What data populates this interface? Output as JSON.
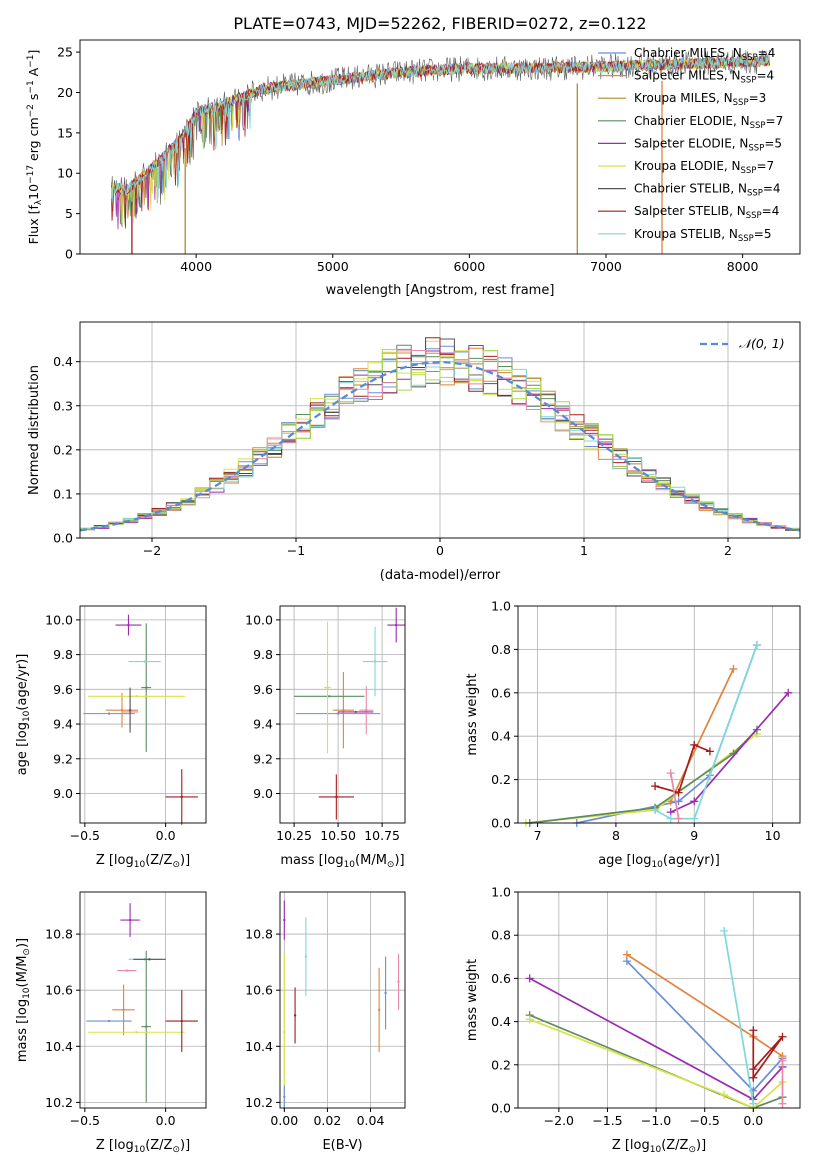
{
  "figure_title": "PLATE=0743, MJD=52262, FIBERID=0272, z=0.122",
  "colors": {
    "Chabrier MILES": "#6a8fd8",
    "Salpeter MILES": "#e0843e",
    "Kroupa MILES": "#b38a2a",
    "Chabrier ELODIE": "#5e8c5e",
    "Salpeter ELODIE": "#9b2cb0",
    "Kroupa ELODIE": "#d7e24a",
    "Chabrier STELIB": "#555555",
    "Salpeter STELIB": "#a51c1c",
    "Kroupa STELIB": "#7fd8dc",
    "pink": "#e889aa",
    "green": "#a9d84f",
    "normal": "#5a8ad6"
  },
  "chart_data": [
    {
      "id": "spectrum",
      "type": "line",
      "title": "PLATE=0743, MJD=52262, FIBERID=0272, z=0.122",
      "xlabel": "wavelength [Angstrom, rest frame]",
      "ylabel": "Flux [f_λ 10^-17 erg cm^-2 s^-1 A^-1]",
      "xlim": [
        3150,
        8420
      ],
      "ylim": [
        0,
        26.5
      ],
      "xticks": [
        "4000",
        "5000",
        "6000",
        "7000",
        "8000"
      ],
      "yticks": [
        "0",
        "5",
        "10",
        "15",
        "20",
        "25"
      ],
      "legend": [
        {
          "base": "Chabrier MILES, N",
          "sub": "SSP",
          "tail": "=4"
        },
        {
          "base": "Salpeter MILES, N",
          "sub": "SSP",
          "tail": "=4"
        },
        {
          "base": "Kroupa MILES, N",
          "sub": "SSP",
          "tail": "=3"
        },
        {
          "base": "Chabrier ELODIE, N",
          "sub": "SSP",
          "tail": "=7"
        },
        {
          "base": "Salpeter ELODIE, N",
          "sub": "SSP",
          "tail": "=5"
        },
        {
          "base": "Kroupa ELODIE, N",
          "sub": "SSP",
          "tail": "=7"
        },
        {
          "base": "Chabrier STELIB, N",
          "sub": "SSP",
          "tail": "=4"
        },
        {
          "base": "Salpeter STELIB, N",
          "sub": "SSP",
          "tail": "=4"
        },
        {
          "base": "Kroupa STELIB, N",
          "sub": "SSP",
          "tail": "=5"
        }
      ],
      "continuum_anchors": [
        [
          3380,
          8.3
        ],
        [
          3500,
          8.0
        ],
        [
          3700,
          11.0
        ],
        [
          3900,
          14.5
        ],
        [
          4000,
          17.5
        ],
        [
          4200,
          18.5
        ],
        [
          4500,
          20.5
        ],
        [
          5000,
          21.5
        ],
        [
          5500,
          22.5
        ],
        [
          6000,
          23.0
        ],
        [
          6500,
          23.0
        ],
        [
          7000,
          23.2
        ],
        [
          7500,
          23.5
        ],
        [
          8000,
          23.8
        ],
        [
          8200,
          23.9
        ]
      ],
      "spikes_down": [
        [
          3530,
          0
        ],
        [
          3920,
          0
        ],
        [
          6790,
          0
        ],
        [
          7410,
          0
        ]
      ]
    },
    {
      "id": "residuals",
      "type": "histogram",
      "xlabel": "(data-model)/error",
      "ylabel": "Normed distribution",
      "xlim": [
        -2.5,
        2.5
      ],
      "ylim": [
        0,
        0.49
      ],
      "xticks": [
        "−2",
        "−1",
        "0",
        "1",
        "2"
      ],
      "yticks": [
        "0.0",
        "0.1",
        "0.2",
        "0.3",
        "0.4"
      ],
      "legend": "𝒩(0, 1)",
      "bin_width": 0.1
    },
    {
      "id": "Z-age",
      "type": "errorbar",
      "xlabel": "Z [log10(Z/Z⊙)]",
      "ylabel": "age  [log10(age/yr)]",
      "xlim": [
        -0.53,
        0.25
      ],
      "ylim": [
        8.83,
        10.08
      ],
      "xticks": [
        "−0.5",
        "0.0"
      ],
      "yticks": [
        "9.0",
        "9.2",
        "9.4",
        "9.6",
        "9.8",
        "10.0"
      ],
      "points": [
        {
          "c": "Chabrier MILES",
          "x": -0.35,
          "xe": 0.16,
          "y": 9.46,
          "ye": 0.0
        },
        {
          "c": "Salpeter MILES",
          "x": -0.27,
          "xe": 0.1,
          "y": 9.48,
          "ye": 0.1
        },
        {
          "c": "Chabrier ELODIE",
          "x": -0.12,
          "xe": 0.03,
          "y": 9.61,
          "ye": 0.37
        },
        {
          "c": "Salpeter ELODIE",
          "x": -0.23,
          "xe": 0.08,
          "y": 9.97,
          "ye": 0.06
        },
        {
          "c": "Kroupa ELODIE",
          "x": -0.18,
          "xe": 0.3,
          "y": 9.56,
          "ye": 0.0
        },
        {
          "c": "Salpeter STELIB",
          "x": 0.1,
          "xe": 0.1,
          "y": 8.98,
          "ye": 0.16
        },
        {
          "c": "Kroupa STELIB",
          "x": -0.13,
          "xe": 0.1,
          "y": 9.76,
          "ye": 0.0
        },
        {
          "c": "pink",
          "x": -0.22,
          "xe": 0.05,
          "y": 9.47,
          "ye": 0.09
        },
        {
          "c": "Chabrier STELIB",
          "x": -0.22,
          "xe": 0.0,
          "y": 9.48,
          "ye": 0.13
        }
      ]
    },
    {
      "id": "mass-age",
      "type": "errorbar",
      "xlabel": "mass [log10(M/M⊙)]",
      "ylabel": "",
      "xlim": [
        10.17,
        10.88
      ],
      "ylim": [
        8.83,
        10.08
      ],
      "xticks": [
        "10.25",
        "10.50",
        "10.75"
      ],
      "yticks": [
        "9.0",
        "9.2",
        "9.4",
        "9.6",
        "9.8",
        "10.0"
      ],
      "points": [
        {
          "c": "Chabrier MILES",
          "x": 10.5,
          "xe": 0.24,
          "y": 9.46,
          "ye": 0.0
        },
        {
          "c": "Salpeter MILES",
          "x": 10.53,
          "xe": 0.06,
          "y": 9.48,
          "ye": 0.22
        },
        {
          "c": "Chabrier ELODIE",
          "x": 10.45,
          "xe": 0.2,
          "y": 9.56,
          "ye": 0.0
        },
        {
          "c": "Salpeter ELODIE",
          "x": 10.83,
          "xe": 0.05,
          "y": 9.97,
          "ye": 0.1
        },
        {
          "c": "Kroupa ELODIE",
          "x": 10.44,
          "xe": 0.02,
          "y": 9.61,
          "ye": 0.38
        },
        {
          "c": "Salpeter STELIB",
          "x": 10.49,
          "xe": 0.1,
          "y": 8.98,
          "ye": 0.13
        },
        {
          "c": "Kroupa STELIB",
          "x": 10.71,
          "xe": 0.07,
          "y": 9.76,
          "ye": 0.2
        },
        {
          "c": "pink",
          "x": 10.66,
          "xe": 0.04,
          "y": 9.48,
          "ye": 0.14
        },
        {
          "c": "Salpeter ELODIE",
          "x": 10.6,
          "xe": 0.1,
          "y": 9.47,
          "ye": 0.0
        }
      ]
    },
    {
      "id": "age-weight",
      "type": "line",
      "xlabel": "age  [log10(age/yr)]",
      "ylabel": "mass weight",
      "xlim": [
        6.75,
        10.35
      ],
      "ylim": [
        0,
        1.0
      ],
      "xticks": [
        "7",
        "8",
        "9",
        "10"
      ],
      "yticks": [
        "0.0",
        "0.2",
        "0.4",
        "0.6",
        "0.8",
        "1.0"
      ],
      "series": [
        {
          "c": "Chabrier MILES",
          "x": [
            7.5,
            8.8,
            9.2,
            9.8
          ],
          "y": [
            0.0,
            0.1,
            0.22,
            0.82
          ]
        },
        {
          "c": "Salpeter MILES",
          "x": [
            8.7,
            9.5
          ],
          "y": [
            0.1,
            0.71
          ]
        },
        {
          "c": "Kroupa ELODIE",
          "x": [
            6.85,
            8.5,
            9.8
          ],
          "y": [
            0.0,
            0.06,
            0.41
          ]
        },
        {
          "c": "Chabrier ELODIE",
          "x": [
            6.9,
            8.5,
            9.5,
            9.8
          ],
          "y": [
            0.0,
            0.07,
            0.32,
            0.43
          ]
        },
        {
          "c": "Salpeter ELODIE",
          "x": [
            8.7,
            9.0,
            10.2
          ],
          "y": [
            0.05,
            0.1,
            0.6
          ]
        },
        {
          "c": "Salpeter STELIB",
          "x": [
            8.5,
            8.8,
            9.0,
            9.2
          ],
          "y": [
            0.17,
            0.14,
            0.36,
            0.33
          ]
        },
        {
          "c": "Kroupa STELIB",
          "x": [
            8.5,
            8.7,
            9.0,
            9.8
          ],
          "y": [
            0.06,
            0.02,
            0.02,
            0.82
          ]
        },
        {
          "c": "pink",
          "x": [
            8.7,
            8.8
          ],
          "y": [
            0.23,
            0.02
          ]
        }
      ]
    },
    {
      "id": "Z-mass",
      "type": "errorbar",
      "xlabel": "Z [log10(Z/Z⊙)]",
      "ylabel": "mass [log10(M/M⊙)]",
      "xlim": [
        -0.53,
        0.25
      ],
      "ylim": [
        10.18,
        10.95
      ],
      "xticks": [
        "−0.5",
        "0.0"
      ],
      "yticks": [
        "10.2",
        "10.4",
        "10.6",
        "10.8"
      ],
      "points": [
        {
          "c": "Chabrier MILES",
          "x": -0.35,
          "xe": 0.14,
          "y": 10.49,
          "ye": 0.0
        },
        {
          "c": "Salpeter MILES",
          "x": -0.26,
          "xe": 0.07,
          "y": 10.53,
          "ye": 0.09
        },
        {
          "c": "Chabrier ELODIE",
          "x": -0.12,
          "xe": 0.03,
          "y": 10.47,
          "ye": 0.27
        },
        {
          "c": "Salpeter ELODIE",
          "x": -0.22,
          "xe": 0.06,
          "y": 10.85,
          "ye": 0.06
        },
        {
          "c": "Kroupa ELODIE",
          "x": -0.18,
          "xe": 0.3,
          "y": 10.45,
          "ye": 0.0
        },
        {
          "c": "Salpeter STELIB",
          "x": 0.1,
          "xe": 0.1,
          "y": 10.49,
          "ye": 0.11
        },
        {
          "c": "Kroupa STELIB",
          "x": -0.13,
          "xe": 0.1,
          "y": 10.71,
          "ye": 0.0
        },
        {
          "c": "pink",
          "x": -0.24,
          "xe": 0.06,
          "y": 10.67,
          "ye": 0.0
        },
        {
          "c": "Chabrier STELIB",
          "x": -0.1,
          "xe": 0.1,
          "y": 10.71,
          "ye": 0.0
        }
      ]
    },
    {
      "id": "ebv-mass",
      "type": "errorbar",
      "xlabel": "E(B-V)",
      "ylabel": "",
      "xlim": [
        -0.002,
        0.056
      ],
      "ylim": [
        10.18,
        10.95
      ],
      "xticks": [
        "0.00",
        "0.02",
        "0.04"
      ],
      "yticks": [
        "10.2",
        "10.4",
        "10.6",
        "10.8"
      ],
      "points": [
        {
          "c": "Salpeter ELODIE",
          "x": 0.0,
          "xe": 0.0,
          "y": 10.85,
          "ye": 0.07
        },
        {
          "c": "Kroupa ELODIE",
          "x": 0.0,
          "xe": 0.0,
          "y": 10.45,
          "ye": 0.28
        },
        {
          "c": "Salpeter STELIB",
          "x": 0.005,
          "xe": 0.0,
          "y": 10.51,
          "ye": 0.1
        },
        {
          "c": "Kroupa STELIB",
          "x": 0.01,
          "xe": 0.0,
          "y": 10.72,
          "ye": 0.14
        },
        {
          "c": "Salpeter MILES",
          "x": 0.044,
          "xe": 0.0,
          "y": 10.53,
          "ye": 0.15
        },
        {
          "c": "Chabrier MILES",
          "x": 0.047,
          "xe": 0.0,
          "y": 10.59,
          "ye": 0.13
        },
        {
          "c": "pink",
          "x": 0.053,
          "xe": 0.0,
          "y": 10.63,
          "ye": 0.1
        },
        {
          "c": "Chabrier MILES",
          "x": 0.0,
          "xe": 0.0,
          "y": 10.22,
          "ye": 0.04
        }
      ]
    },
    {
      "id": "Z-weight",
      "type": "line",
      "xlabel": "Z [log10(Z/Z⊙)]",
      "ylabel": "mass weight",
      "xlim": [
        -2.42,
        0.48
      ],
      "ylim": [
        0,
        1.0
      ],
      "xticks": [
        "−2.0",
        "−1.5",
        "−1.0",
        "−0.5",
        "0.0"
      ],
      "yticks": [
        "0.0",
        "0.2",
        "0.4",
        "0.6",
        "0.8",
        "1.0"
      ],
      "series": [
        {
          "c": "Chabrier MILES",
          "x": [
            -1.3,
            0.0,
            0.3
          ],
          "y": [
            0.68,
            0.08,
            0.23
          ]
        },
        {
          "c": "Salpeter MILES",
          "x": [
            -1.3,
            0.0,
            0.3
          ],
          "y": [
            0.71,
            0.33,
            0.24
          ]
        },
        {
          "c": "Salpeter ELODIE",
          "x": [
            -2.3,
            0.0,
            0.3
          ],
          "y": [
            0.6,
            0.04,
            0.19
          ]
        },
        {
          "c": "Chabrier ELODIE",
          "x": [
            -2.3,
            0.0,
            0.3
          ],
          "y": [
            0.43,
            0.0,
            0.05
          ]
        },
        {
          "c": "Kroupa ELODIE",
          "x": [
            -2.3,
            -0.3,
            0.0,
            0.3
          ],
          "y": [
            0.41,
            0.06,
            0.0,
            0.12
          ]
        },
        {
          "c": "Kroupa STELIB",
          "x": [
            -0.3,
            0.0
          ],
          "y": [
            0.82,
            0.02
          ]
        },
        {
          "c": "Salpeter STELIB",
          "x": [
            0.0,
            0.0,
            0.3,
            0.0
          ],
          "y": [
            0.36,
            0.14,
            0.33,
            0.18
          ]
        },
        {
          "c": "pink",
          "x": [
            0.3,
            0.3
          ],
          "y": [
            0.22,
            0.02
          ]
        }
      ]
    }
  ]
}
